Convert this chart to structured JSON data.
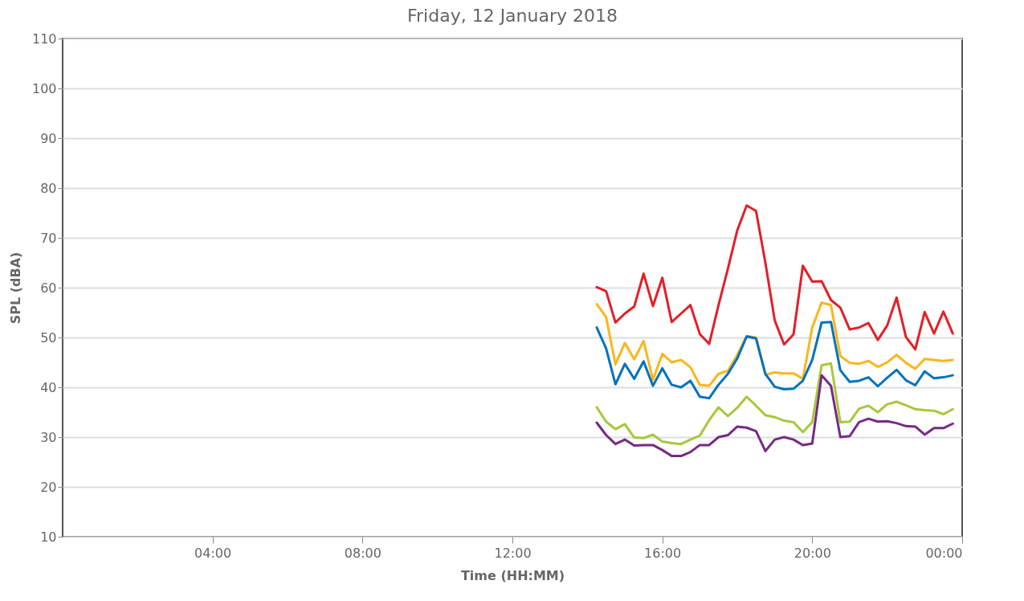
{
  "chart_data": {
    "type": "line",
    "title": "Friday, 12 January 2018",
    "xlabel": "Time (HH:MM)",
    "ylabel": "SPL (dBA)",
    "x": [
      14.25,
      14.5,
      14.75,
      15,
      15.25,
      15.5,
      15.75,
      16,
      16.25,
      16.5,
      16.75,
      17,
      17.25,
      17.5,
      17.75,
      18,
      18.25,
      18.5,
      18.75,
      19,
      19.25,
      19.5,
      19.75,
      20,
      20.25,
      20.5,
      20.75,
      21,
      21.25,
      21.5,
      21.75,
      22,
      22.25,
      22.5,
      22.75,
      23,
      23.25,
      23.5,
      23.75
    ],
    "series": [
      {
        "color": "#e41e26",
        "values": [
          60.1,
          59.3,
          53,
          54.8,
          56.2,
          62.8,
          56.3,
          62,
          53.1,
          54.8,
          56.5,
          50.7,
          48.7,
          56.5,
          63.8,
          71.5,
          76.5,
          75.4,
          65,
          53.4,
          48.6,
          50.6,
          64.4,
          61.2,
          61.3,
          57.5,
          56,
          51.6,
          52,
          52.9,
          49.5,
          52.4,
          58,
          50.1,
          47.6,
          55.1,
          50.8,
          55.2,
          50.8
        ]
      },
      {
        "color": "#fbb51b",
        "values": [
          56.7,
          54.1,
          44.6,
          48.9,
          45.6,
          49.3,
          41.5,
          46.7,
          45,
          45.5,
          44,
          40.5,
          40.3,
          42.7,
          43.3,
          46.5,
          50.3,
          50,
          42.5,
          43,
          42.8,
          42.8,
          41.7,
          52,
          57,
          56.5,
          46.3,
          44.9,
          44.7,
          45.3,
          44.1,
          45,
          46.5,
          44.9,
          43.7,
          45.7,
          45.5,
          45.3,
          45.5
        ]
      },
      {
        "color": "#0072bc",
        "values": [
          52,
          47.8,
          40.6,
          44.7,
          41.7,
          45.2,
          40.3,
          43.8,
          40.5,
          40,
          41.3,
          38.1,
          37.8,
          40.5,
          42.7,
          45.8,
          50.2,
          49.8,
          42.7,
          40.1,
          39.6,
          39.7,
          41.3,
          45.5,
          53,
          53.1,
          43.4,
          41.1,
          41.3,
          42,
          40.2,
          41.9,
          43.5,
          41.4,
          40.4,
          43.2,
          41.8,
          42,
          42.4
        ]
      },
      {
        "color": "#a6c83c",
        "values": [
          36,
          33.1,
          31.6,
          32.6,
          29.9,
          29.8,
          30.5,
          29.1,
          28.8,
          28.6,
          29.5,
          30.3,
          33.4,
          36,
          34.2,
          35.9,
          38.1,
          36.3,
          34.4,
          34,
          33.3,
          33,
          31,
          33,
          44.4,
          44.8,
          33,
          33.1,
          35.7,
          36.3,
          35,
          36.6,
          37.1,
          36.4,
          35.6,
          35.4,
          35.3,
          34.6,
          35.6
        ]
      },
      {
        "color": "#762a83",
        "values": [
          32.9,
          30.4,
          28.6,
          29.5,
          28.3,
          28.4,
          28.4,
          27.4,
          26.2,
          26.2,
          27,
          28.4,
          28.4,
          30,
          30.4,
          32.1,
          31.9,
          31.2,
          27.2,
          29.5,
          30,
          29.5,
          28.4,
          28.7,
          42.4,
          40.3,
          30,
          30.2,
          33,
          33.7,
          33.1,
          33.2,
          32.8,
          32.2,
          32.1,
          30.5,
          31.8,
          31.8,
          32.7
        ]
      }
    ],
    "xlim": [
      0,
      24
    ],
    "xticks": [
      {
        "value": 4,
        "label": "04:00"
      },
      {
        "value": 8,
        "label": "08:00"
      },
      {
        "value": 12,
        "label": "12:00"
      },
      {
        "value": 16,
        "label": "16:00"
      },
      {
        "value": 20,
        "label": "20:00"
      },
      {
        "value": 24,
        "label": "00:00"
      }
    ],
    "ylim": [
      10,
      110
    ],
    "yticks": [
      10,
      20,
      30,
      40,
      50,
      60,
      70,
      80,
      90,
      100,
      110
    ],
    "grid": "y",
    "marker": "none",
    "line_style": "solid"
  }
}
